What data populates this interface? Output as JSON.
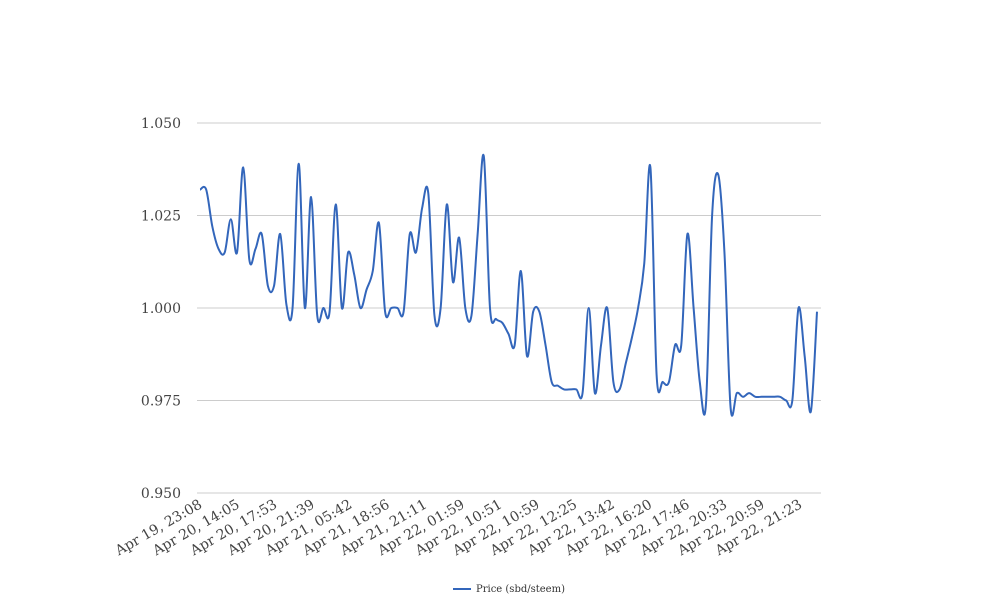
{
  "chart_data": {
    "type": "line",
    "title": "",
    "xlabel": "",
    "ylabel": "",
    "ylim": [
      0.95,
      1.05
    ],
    "y_ticks": [
      "0.950",
      "0.975",
      "1.000",
      "1.025",
      "1.050"
    ],
    "grid": true,
    "legend_position": "bottom-center",
    "x_tick_labels": [
      "Apr 19, 23:08",
      "Apr 20, 14:05",
      "Apr 20, 17:53",
      "Apr 20, 21:39",
      "Apr 21, 05:42",
      "Apr 21, 18:56",
      "Apr 21, 21:11",
      "Apr 22, 01:59",
      "Apr 22, 10:51",
      "Apr 22, 10:59",
      "Apr 22, 12:25",
      "Apr 22, 13:42",
      "Apr 22, 16:20",
      "Apr 22, 17:46",
      "Apr 22, 20:33",
      "Apr 22, 20:59",
      "Apr 22, 21:23"
    ],
    "series": [
      {
        "name": "Price (sbd/steem)",
        "color": "#3366bb",
        "values": [
          1.032,
          1.032,
          1.022,
          1.016,
          1.015,
          1.024,
          1.015,
          1.038,
          1.013,
          1.016,
          1.02,
          1.006,
          1.006,
          1.02,
          1.001,
          1.0,
          1.039,
          1.0,
          1.03,
          0.998,
          1.0,
          0.999,
          1.028,
          1.0,
          1.015,
          1.009,
          1.0,
          1.005,
          1.01,
          1.023,
          0.999,
          1.0,
          1.0,
          0.999,
          1.02,
          1.015,
          1.027,
          1.031,
          0.998,
          1.0,
          1.028,
          1.007,
          1.019,
          1.0,
          0.998,
          1.02,
          1.041,
          1.0,
          0.997,
          0.996,
          0.993,
          0.99,
          1.01,
          0.987,
          0.999,
          0.999,
          0.99,
          0.98,
          0.979,
          0.978,
          0.978,
          0.978,
          0.977,
          1.0,
          0.977,
          0.99,
          1.0,
          0.98,
          0.978,
          0.985,
          0.992,
          1.0,
          1.012,
          1.038,
          0.982,
          0.98,
          0.98,
          0.99,
          0.99,
          1.02,
          1.0,
          0.98,
          0.974,
          1.025,
          1.036,
          1.015,
          0.973,
          0.977,
          0.976,
          0.977,
          0.976,
          0.976,
          0.976,
          0.976,
          0.976,
          0.975,
          0.975,
          1.0,
          0.987,
          0.972,
          0.999
        ]
      }
    ]
  }
}
